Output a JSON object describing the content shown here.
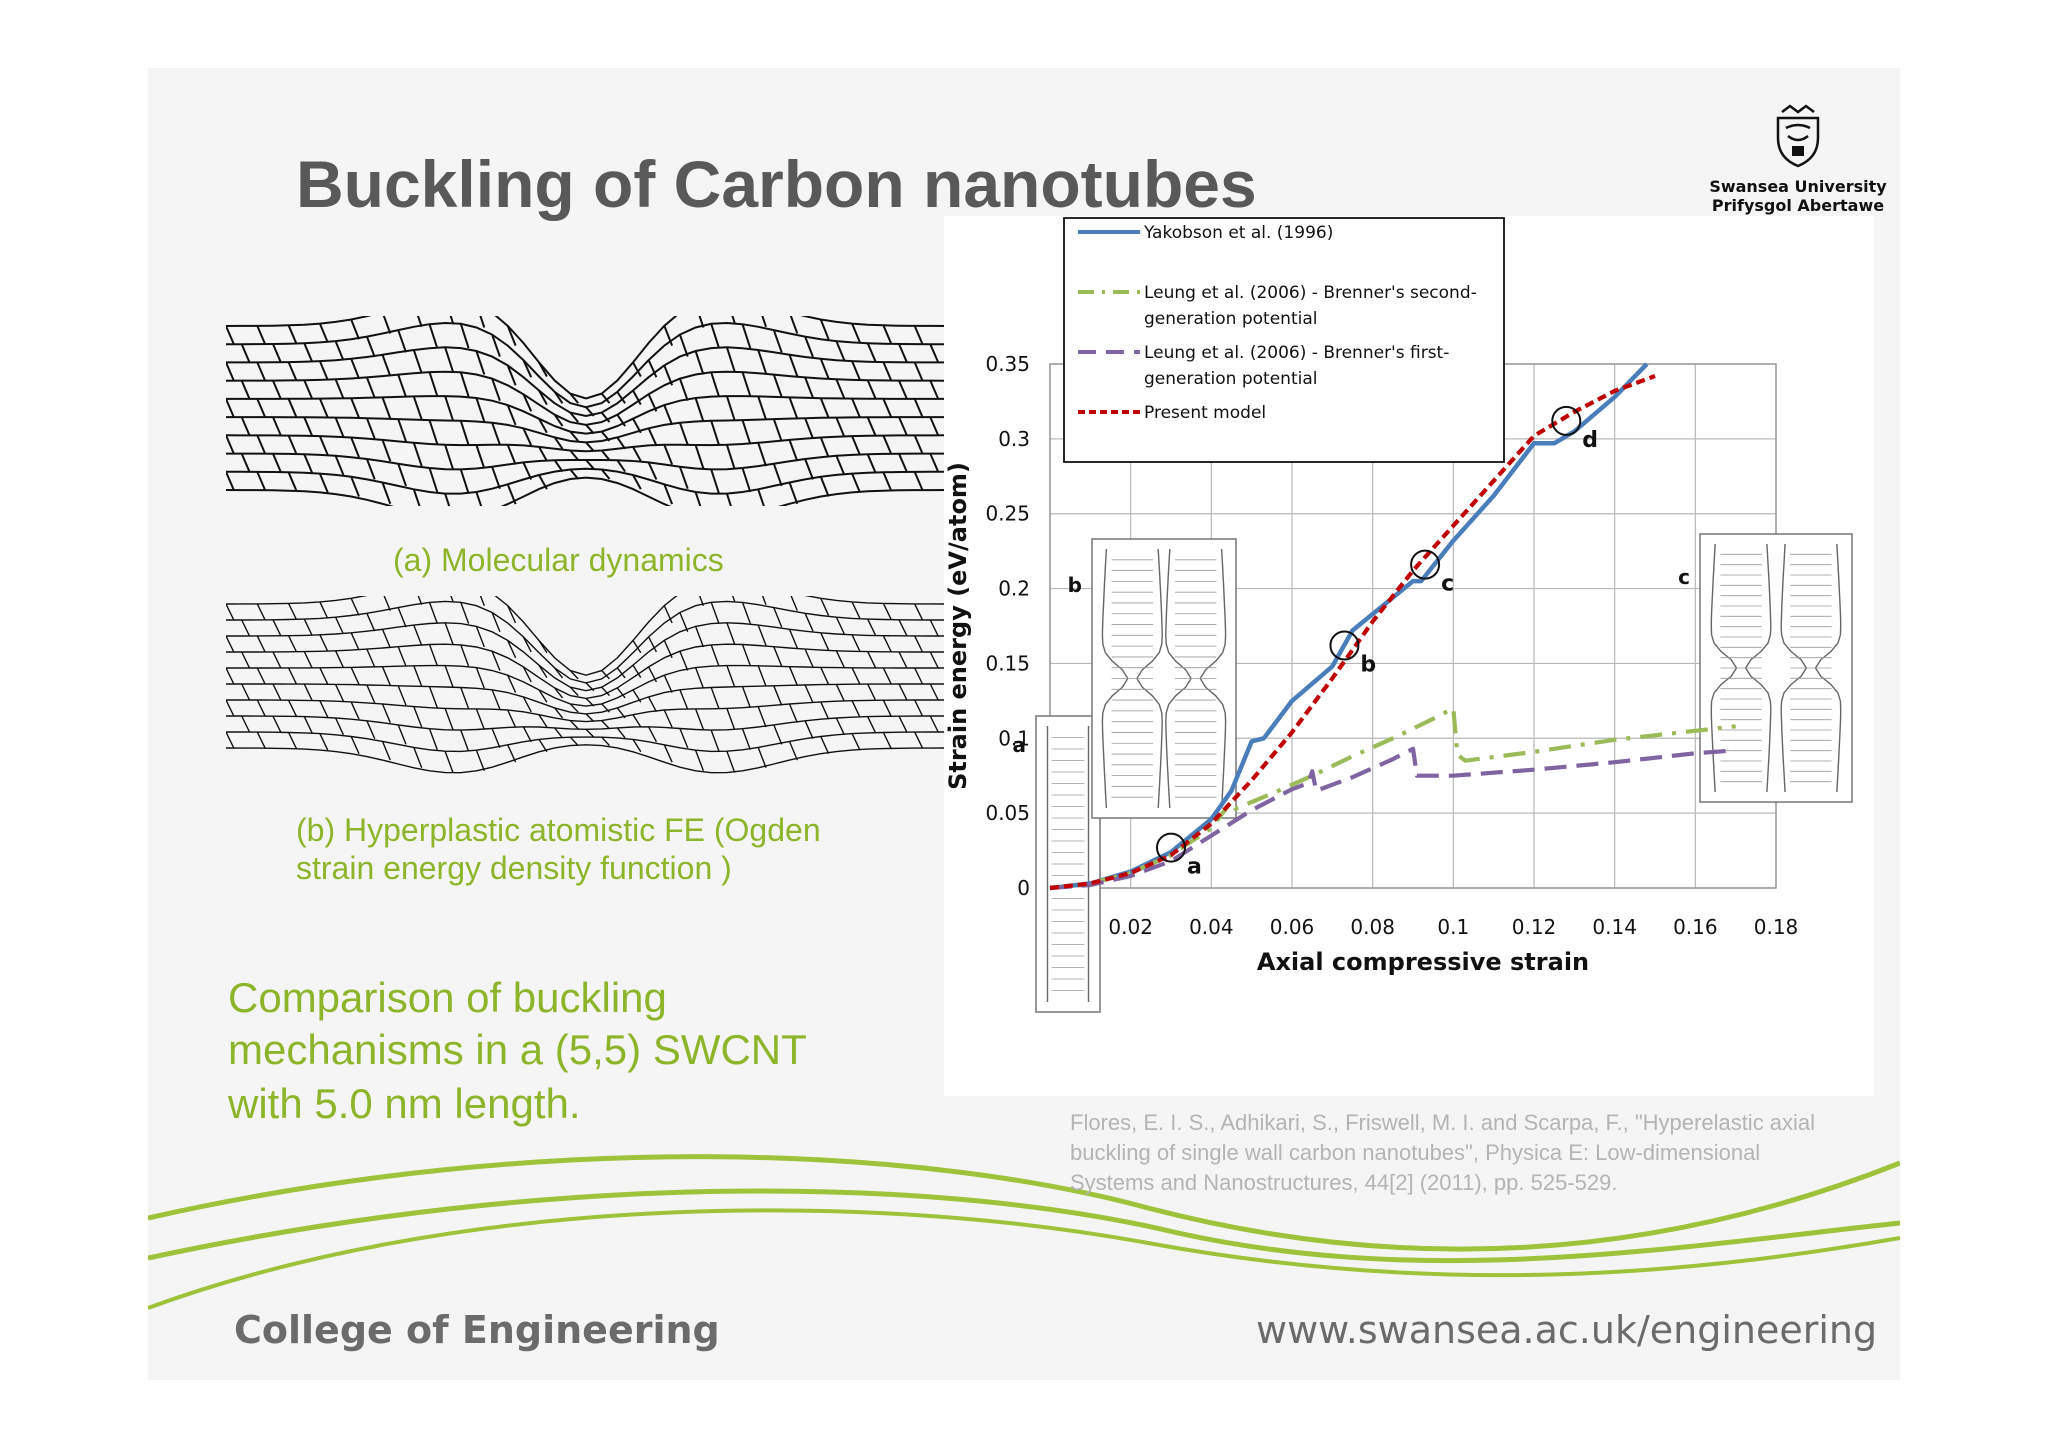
{
  "slide": {
    "title": "Buckling of Carbon nanotubes",
    "logo": {
      "line1": "Swansea University",
      "line2": "Prifysgol Abertawe",
      "icon": "university-crest-icon"
    },
    "caption_a": "(a) Molecular dynamics",
    "caption_b": [
      "(b) Hyperplastic atomistic FE (Ogden",
      "strain energy density function )"
    ],
    "comparison": [
      "Comparison of buckling",
      "mechanisms in a (5,5) SWCNT",
      "with 5.0 nm length."
    ],
    "reference": [
      "Flores, E. I. S., Adhikari, S., Friswell, M. I. and Scarpa, F., \"Hyperelastic axial",
      "buckling of single wall carbon nanotubes\", Physica E: Low-dimensional",
      "Systems and Nanostructures, 44[2] (2011), pp. 525-529."
    ],
    "footer_left": "College of Engineering",
    "footer_right": "www.swansea.ac.uk/engineering",
    "colors": {
      "accent_green": "#8db52a",
      "title_gray": "#595959",
      "reference_gray": "#b4b4b4"
    }
  },
  "chart_data": {
    "type": "line",
    "title": "",
    "xlabel": "Axial compressive strain",
    "ylabel": "Strain energy (eV/atom)",
    "xlim": [
      0,
      0.18
    ],
    "ylim": [
      0,
      0.35
    ],
    "xticks": [
      "0",
      "0.02",
      "0.04",
      "0.06",
      "0.08",
      "0.1",
      "0.12",
      "0.14",
      "0.16",
      "0.18"
    ],
    "yticks": [
      "0",
      "0.05",
      "0.1",
      "0.15",
      "0.2",
      "0.25",
      "0.3",
      "0.35"
    ],
    "grid": true,
    "legend_position": "top-left",
    "series": [
      {
        "name": "Yakobson et al. (1996)",
        "color": "#4a7ebb",
        "style": "solid",
        "points": [
          [
            0,
            0
          ],
          [
            0.01,
            0.003
          ],
          [
            0.02,
            0.011
          ],
          [
            0.03,
            0.024
          ],
          [
            0.04,
            0.046
          ],
          [
            0.045,
            0.065
          ],
          [
            0.05,
            0.098
          ],
          [
            0.053,
            0.1
          ],
          [
            0.06,
            0.125
          ],
          [
            0.07,
            0.148
          ],
          [
            0.075,
            0.172
          ],
          [
            0.08,
            0.183
          ],
          [
            0.09,
            0.205
          ],
          [
            0.092,
            0.205
          ],
          [
            0.1,
            0.232
          ],
          [
            0.11,
            0.262
          ],
          [
            0.12,
            0.297
          ],
          [
            0.125,
            0.297
          ],
          [
            0.13,
            0.305
          ],
          [
            0.14,
            0.328
          ],
          [
            0.148,
            0.35
          ]
        ]
      },
      {
        "name": "Leung et al. (2006) - Brenner's second-generation potential",
        "color": "#9bbb59",
        "style": "dashdot",
        "points": [
          [
            0,
            0
          ],
          [
            0.01,
            0.003
          ],
          [
            0.02,
            0.01
          ],
          [
            0.03,
            0.022
          ],
          [
            0.04,
            0.04
          ],
          [
            0.045,
            0.058
          ],
          [
            0.046,
            0.053
          ],
          [
            0.055,
            0.063
          ],
          [
            0.065,
            0.075
          ],
          [
            0.075,
            0.088
          ],
          [
            0.085,
            0.1
          ],
          [
            0.095,
            0.113
          ],
          [
            0.1,
            0.12
          ],
          [
            0.101,
            0.089
          ],
          [
            0.103,
            0.085
          ],
          [
            0.12,
            0.091
          ],
          [
            0.14,
            0.099
          ],
          [
            0.16,
            0.105
          ],
          [
            0.17,
            0.108
          ]
        ]
      },
      {
        "name": "Leung et al. (2006) - Brenner's first-generation potential",
        "color": "#8064a2",
        "style": "dashed",
        "points": [
          [
            0,
            0
          ],
          [
            0.01,
            0.002
          ],
          [
            0.02,
            0.008
          ],
          [
            0.03,
            0.018
          ],
          [
            0.04,
            0.035
          ],
          [
            0.05,
            0.052
          ],
          [
            0.06,
            0.066
          ],
          [
            0.064,
            0.07
          ],
          [
            0.065,
            0.078
          ],
          [
            0.066,
            0.065
          ],
          [
            0.075,
            0.074
          ],
          [
            0.085,
            0.086
          ],
          [
            0.09,
            0.093
          ],
          [
            0.091,
            0.075
          ],
          [
            0.1,
            0.075
          ],
          [
            0.12,
            0.079
          ],
          [
            0.14,
            0.084
          ],
          [
            0.16,
            0.09
          ],
          [
            0.17,
            0.092
          ]
        ]
      },
      {
        "name": "Present model",
        "color": "#c00000",
        "style": "dotted",
        "points": [
          [
            0,
            0
          ],
          [
            0.01,
            0.003
          ],
          [
            0.02,
            0.01
          ],
          [
            0.03,
            0.022
          ],
          [
            0.04,
            0.043
          ],
          [
            0.05,
            0.072
          ],
          [
            0.06,
            0.104
          ],
          [
            0.07,
            0.14
          ],
          [
            0.08,
            0.178
          ],
          [
            0.09,
            0.212
          ],
          [
            0.1,
            0.242
          ],
          [
            0.11,
            0.272
          ],
          [
            0.12,
            0.302
          ],
          [
            0.13,
            0.318
          ],
          [
            0.14,
            0.332
          ],
          [
            0.15,
            0.342
          ]
        ]
      }
    ],
    "markers": [
      {
        "label": "a",
        "x": 0.03,
        "y": 0.027
      },
      {
        "label": "b",
        "x": 0.073,
        "y": 0.162
      },
      {
        "label": "c",
        "x": 0.093,
        "y": 0.216
      },
      {
        "label": "d",
        "x": 0.128,
        "y": 0.312
      }
    ],
    "insets": [
      {
        "label": "a",
        "icon": "nanotube-straight-icon"
      },
      {
        "label": "b",
        "icon": "nanotube-buckled-icon"
      },
      {
        "label": "c",
        "icon": "nanotube-buckled-icon"
      }
    ]
  }
}
